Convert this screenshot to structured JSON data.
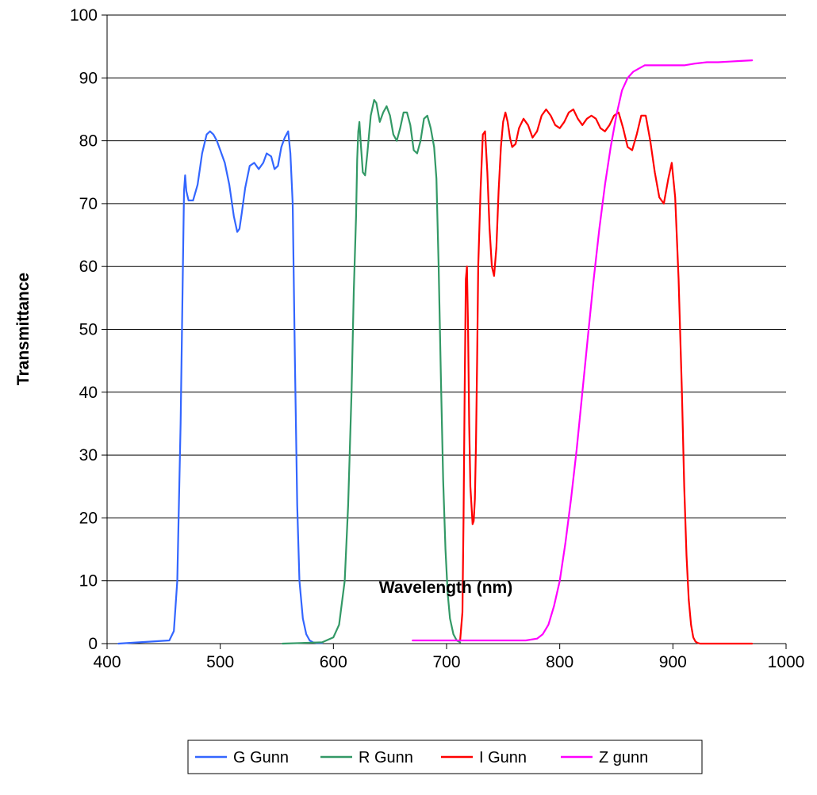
{
  "chart_data": {
    "type": "line",
    "title": "",
    "xlabel": "Wavelength (nm)",
    "ylabel": "Transmittance",
    "xlim": [
      400,
      1000
    ],
    "ylim": [
      0,
      100
    ],
    "x_ticks": [
      400,
      500,
      600,
      700,
      800,
      900,
      1000
    ],
    "y_ticks": [
      0,
      10,
      20,
      30,
      40,
      50,
      60,
      70,
      80,
      90,
      100
    ],
    "grid": "horizontal major gridlines",
    "legend_position": "bottom",
    "series": [
      {
        "name": "G Gunn",
        "color": "#3366ff",
        "x": [
          410,
          455,
          459,
          462,
          465,
          467,
          468,
          469,
          470,
          472,
          476,
          480,
          484,
          488,
          491,
          494,
          497,
          500,
          504,
          508,
          512,
          515,
          517,
          519,
          522,
          526,
          530,
          534,
          538,
          541,
          545,
          548,
          551,
          554,
          557,
          560,
          562,
          564,
          566,
          568,
          570,
          573,
          576,
          579,
          582,
          585,
          590
        ],
        "y": [
          0,
          0.5,
          2,
          10,
          35,
          60,
          72,
          74.5,
          72,
          70.5,
          70.5,
          73,
          78,
          81,
          81.5,
          81,
          80,
          78.5,
          76.5,
          73,
          68,
          65.5,
          66,
          68.5,
          72.5,
          76,
          76.5,
          75.5,
          76.5,
          78,
          77.5,
          75.5,
          76,
          79,
          80.5,
          81.5,
          78,
          70,
          45,
          22,
          10,
          4,
          1.5,
          0.5,
          0.2,
          0.1,
          0.1
        ]
      },
      {
        "name": "R Gunn",
        "color": "#339966",
        "x": [
          555,
          590,
          600,
          605,
          610,
          613,
          616,
          618,
          620,
          621,
          622,
          623,
          624,
          626,
          628,
          630,
          633,
          636,
          638,
          641,
          644,
          647,
          650,
          653,
          656,
          659,
          662,
          665,
          668,
          671,
          674,
          677,
          680,
          683,
          686,
          689,
          691,
          693,
          695,
          697,
          699,
          701,
          703,
          706,
          709,
          712
        ],
        "y": [
          0,
          0.2,
          1,
          3,
          10,
          22,
          40,
          56,
          68,
          77,
          81.5,
          83,
          80,
          75,
          74.5,
          78,
          84,
          86.5,
          86,
          83,
          84.5,
          85.5,
          84,
          81,
          80,
          82,
          84.5,
          84.5,
          82.5,
          78.5,
          78,
          80,
          83.5,
          84,
          82,
          79,
          74,
          60,
          42,
          26,
          15,
          8,
          4,
          1.5,
          0.5,
          0.2
        ]
      },
      {
        "name": "I Gunn",
        "color": "#ff0000",
        "x": [
          712,
          714,
          715,
          716,
          717,
          718,
          719,
          720,
          721,
          722,
          723,
          724,
          725,
          726,
          727,
          728,
          730,
          732,
          734,
          736,
          738,
          740,
          742,
          744,
          746,
          748,
          750,
          752,
          754,
          756,
          758,
          761,
          764,
          768,
          772,
          776,
          780,
          784,
          788,
          792,
          796,
          800,
          804,
          808,
          812,
          816,
          820,
          824,
          828,
          832,
          836,
          840,
          844,
          848,
          852,
          856,
          860,
          864,
          868,
          872,
          876,
          880,
          884,
          888,
          892,
          896,
          899,
          902,
          905,
          908,
          910,
          912,
          914,
          916,
          918,
          920,
          922,
          924,
          926,
          928,
          930,
          934,
          940,
          950,
          960,
          970
        ],
        "y": [
          0.5,
          5,
          20,
          40,
          58,
          60,
          50,
          35,
          25,
          22,
          19,
          19.5,
          23,
          32,
          45,
          60,
          72,
          81,
          81.5,
          75,
          66,
          60,
          58.5,
          63,
          72,
          79,
          83,
          84.5,
          83,
          80.5,
          79,
          79.5,
          82,
          83.5,
          82.5,
          80.5,
          81.5,
          84,
          85,
          84,
          82.5,
          82,
          83,
          84.5,
          85,
          83.5,
          82.5,
          83.5,
          84,
          83.5,
          82,
          81.5,
          82.5,
          84,
          84.5,
          82,
          79,
          78.5,
          81,
          84,
          84,
          80,
          75,
          71,
          70,
          74,
          76.5,
          71,
          58,
          40,
          25,
          14,
          7,
          3,
          1,
          0.3,
          0.1,
          0,
          0,
          0,
          0,
          0,
          0,
          0,
          0,
          0
        ]
      },
      {
        "name": "Z gunn",
        "color": "#ff00ff",
        "x": [
          670,
          700,
          740,
          770,
          780,
          785,
          790,
          795,
          800,
          805,
          810,
          815,
          820,
          825,
          830,
          835,
          840,
          845,
          850,
          855,
          860,
          865,
          870,
          875,
          880,
          885,
          890,
          900,
          910,
          920,
          930,
          940,
          950,
          960,
          970
        ],
        "y": [
          0.5,
          0.5,
          0.5,
          0.5,
          0.8,
          1.5,
          3,
          6,
          10,
          16,
          23,
          31,
          40,
          49,
          58,
          66,
          73,
          79,
          84,
          88,
          90,
          91,
          91.5,
          92,
          92,
          92,
          92,
          92,
          92,
          92.3,
          92.5,
          92.5,
          92.6,
          92.7,
          92.8
        ]
      }
    ]
  }
}
